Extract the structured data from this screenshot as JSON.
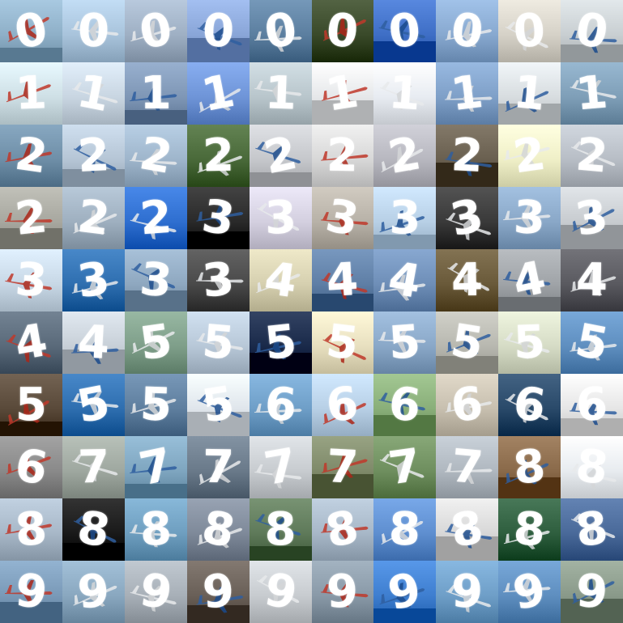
{
  "grid": {
    "rows": 10,
    "cols": 10,
    "digits": [
      "0",
      "0",
      "0",
      "0",
      "0",
      "0",
      "0",
      "0",
      "0",
      "0",
      "1",
      "1",
      "1",
      "1",
      "1",
      "1",
      "1",
      "1",
      "1",
      "1",
      "2",
      "2",
      "2",
      "2",
      "2",
      "2",
      "2",
      "2",
      "2",
      "2",
      "2",
      "2",
      "2",
      "3",
      "3",
      "3",
      "3",
      "3",
      "3",
      "3",
      "3",
      "3",
      "3",
      "3",
      "4",
      "4",
      "4",
      "4",
      "4",
      "4",
      "4",
      "4",
      "5",
      "5",
      "5",
      "5",
      "5",
      "5",
      "5",
      "5",
      "5",
      "5",
      "5",
      "5",
      "6",
      "6",
      "6",
      "6",
      "6",
      "6",
      "6",
      "7",
      "7",
      "7",
      "7",
      "7",
      "7",
      "7",
      "8",
      "8",
      "8",
      "8",
      "8",
      "8",
      "8",
      "8",
      "8",
      "8",
      "8",
      "8",
      "9",
      "9",
      "9",
      "9",
      "9",
      "9",
      "9",
      "9",
      "9",
      "9"
    ],
    "sky_colors": [
      "#8fb0c8",
      "#a9c4dc",
      "#9fb0c4",
      "#8aa6d8",
      "#5c7fa0",
      "#3a4a2a",
      "#3f6fc6",
      "#88a9d0",
      "#d6d2c8",
      "#c9cfd2",
      "#cfe0e6",
      "#c9d6e2",
      "#7f97b6",
      "#6f95d8",
      "#b9c6cc",
      "#e6e8ea",
      "#e8ecf2",
      "#7fa0c8",
      "#d8dde0",
      "#7f9fb8",
      "#6f8fa8",
      "#b6c6d6",
      "#9fb6cc",
      "#4a6a3a",
      "#c6c8cc",
      "#d8d8d8",
      "#b8b8c0",
      "#6a6050",
      "#f0f0c8",
      "#b8bec6",
      "#a8a8a0",
      "#9fb0c0",
      "#2f6fd0",
      "#2a2a2a",
      "#d4d0e0",
      "#b8b2a8",
      "#b8d0e6",
      "#3a3a3a",
      "#8aa8c8",
      "#c8ccd0",
      "#c8d8e6",
      "#2f6fb0",
      "#8fa8c0",
      "#4a4a4a",
      "#d6d0b0",
      "#5f7fa6",
      "#6f8fb8",
      "#6a5a3a",
      "#a0a4a8",
      "#5a5a60",
      "#5a6a7a",
      "#c8d0d8",
      "#7f9f8a",
      "#b8c8d8",
      "#1a2a4a",
      "#e8e0c0",
      "#8aa8c8",
      "#b8b8b0",
      "#d6dcc6",
      "#5f8fc0",
      "#5a4a3a",
      "#2f6fb0",
      "#5f7f9f",
      "#e0e6ec",
      "#6f9fc8",
      "#b8d0e6",
      "#8aaf7a",
      "#c8c0b0",
      "#2a4a6a",
      "#e6e6e6",
      "#8a8a8a",
      "#9fa8a0",
      "#7fa6c0",
      "#6a7a8a",
      "#c8ccd0",
      "#7f8a6a",
      "#6f8f5f",
      "#b0b8c0",
      "#8a6a4a",
      "#e8ecf0",
      "#a8b8c8",
      "#1a1a1a",
      "#6f9fc0",
      "#7f8a9a",
      "#5f7a5a",
      "#a8b8c8",
      "#5f8fd0",
      "#d8d8d8",
      "#2f5f3f",
      "#4a6a9a",
      "#7a9ab8",
      "#8aa8c0",
      "#a8b0b8",
      "#6a6058",
      "#c8ccd0",
      "#8a9aa8",
      "#3f7fd0",
      "#6f9fc8",
      "#5f8fc0",
      "#8a9a8a"
    ]
  }
}
